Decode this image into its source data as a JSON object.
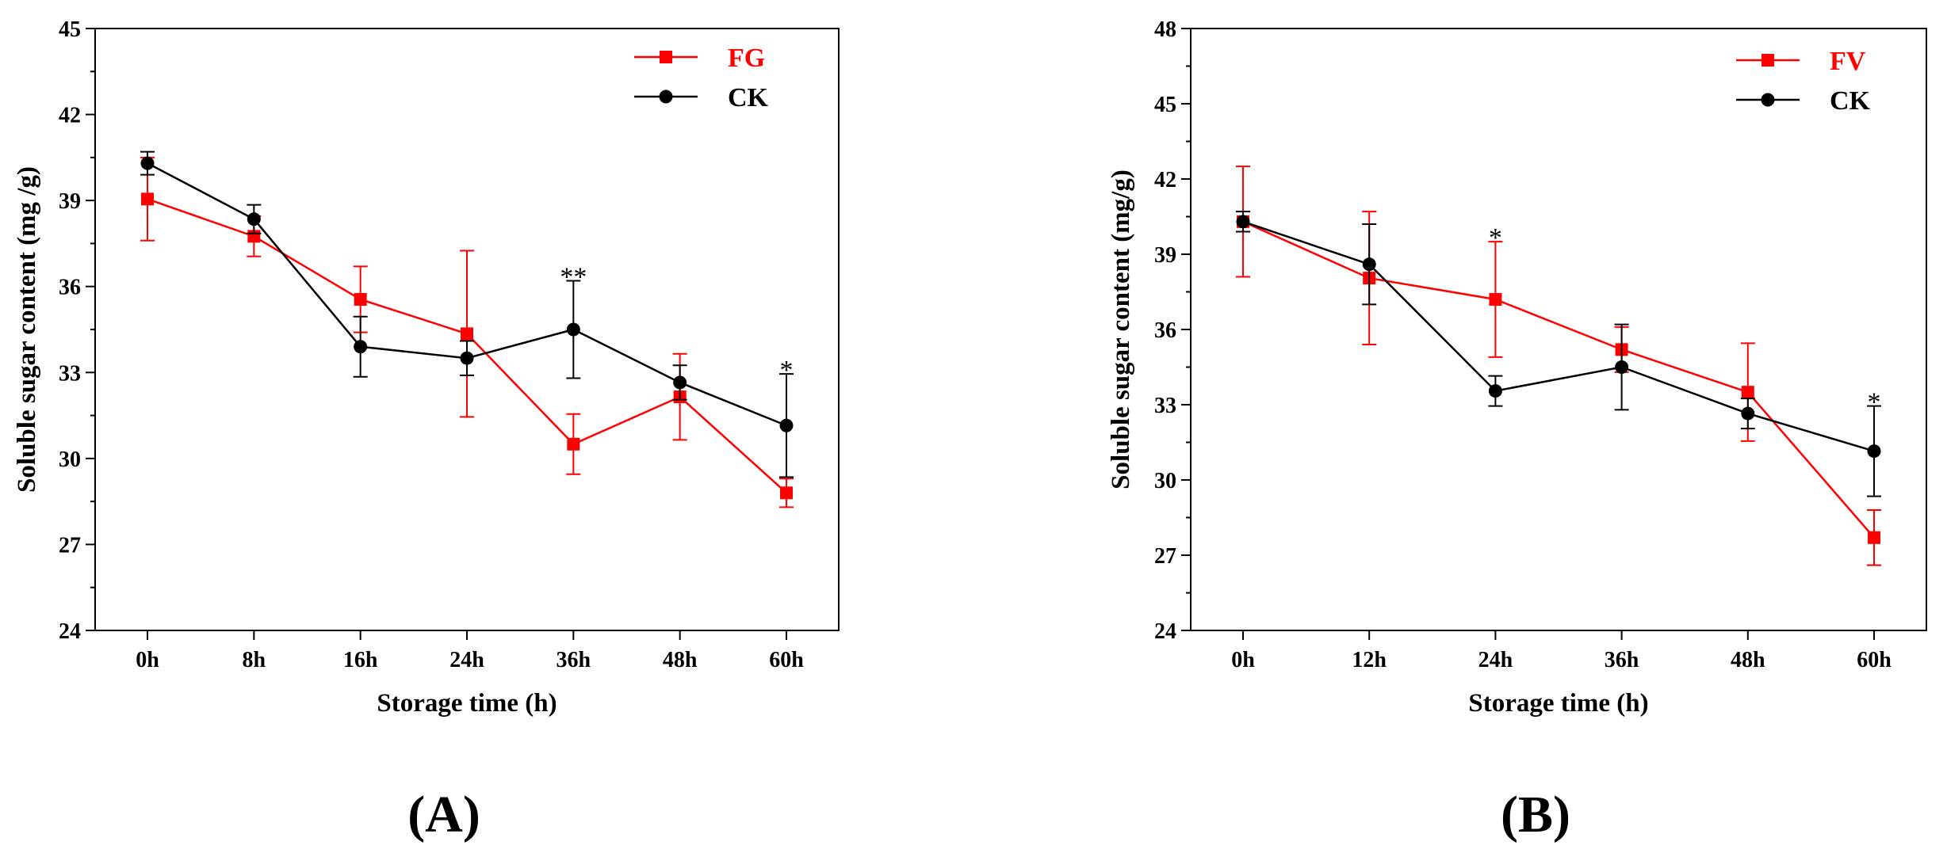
{
  "chart_data": [
    {
      "type": "line",
      "panel_label": "(A)",
      "xlabel": "Storage time (h)",
      "ylabel": "Soluble sugar content (mg /g)",
      "categories": [
        "0h",
        "8h",
        "16h",
        "24h",
        "36h",
        "48h",
        "60h"
      ],
      "ylim": [
        24,
        45
      ],
      "yticks": [
        "24",
        "27",
        "30",
        "33",
        "36",
        "39",
        "42",
        "45"
      ],
      "grid": false,
      "legend_position": "top-right",
      "series": [
        {
          "name": "FG",
          "color": "#ff0000",
          "marker": "square",
          "values": [
            39.05,
            37.75,
            35.55,
            34.35,
            30.5,
            32.15,
            28.8
          ],
          "errors": [
            1.45,
            0.7,
            1.15,
            2.9,
            1.05,
            1.5,
            0.5
          ]
        },
        {
          "name": "CK",
          "color": "#000000",
          "marker": "circle",
          "values": [
            40.3,
            38.35,
            33.9,
            33.5,
            34.5,
            32.65,
            31.15
          ],
          "errors": [
            0.4,
            0.5,
            1.05,
            0.6,
            1.7,
            0.6,
            1.8
          ]
        }
      ],
      "annotations": [
        {
          "category": "36h",
          "text": "**"
        },
        {
          "category": "60h",
          "text": "*"
        }
      ]
    },
    {
      "type": "line",
      "panel_label": "(B)",
      "xlabel": "Storage time (h)",
      "ylabel": "Soluble sugar content (mg/g)",
      "categories": [
        "0h",
        "12h",
        "24h",
        "36h",
        "48h",
        "60h"
      ],
      "ylim": [
        24,
        48
      ],
      "yticks": [
        "24",
        "27",
        "30",
        "33",
        "36",
        "39",
        "42",
        "45",
        "48"
      ],
      "grid": false,
      "legend_position": "top-right",
      "series": [
        {
          "name": "FV",
          "color": "#ff0000",
          "marker": "square",
          "values": [
            40.3,
            38.05,
            37.2,
            35.2,
            33.5,
            27.7
          ],
          "errors": [
            2.2,
            2.65,
            2.3,
            0.9,
            1.95,
            1.1
          ]
        },
        {
          "name": "CK",
          "color": "#000000",
          "marker": "circle",
          "values": [
            40.3,
            38.6,
            33.55,
            34.5,
            32.65,
            31.15
          ],
          "errors": [
            0.4,
            1.6,
            0.6,
            1.7,
            0.6,
            1.8
          ]
        }
      ],
      "annotations": [
        {
          "category": "24h",
          "text": "*"
        },
        {
          "category": "60h",
          "text": "*"
        }
      ]
    }
  ]
}
